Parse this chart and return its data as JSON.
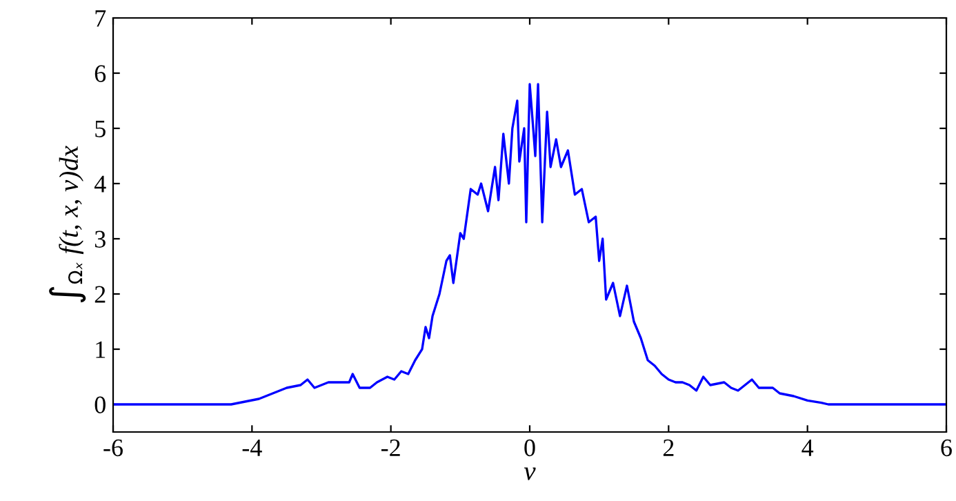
{
  "chart_data": {
    "type": "line",
    "xlabel": "v",
    "ylabel": "∫$_{Ωₓ}$ f(t, x, v)dx",
    "xlim": [
      -6,
      6
    ],
    "xticks": [
      -6,
      -4,
      -2,
      0,
      2,
      4,
      6
    ],
    "ylim": [
      -0.5,
      7
    ],
    "yticks": [
      0,
      1,
      2,
      3,
      4,
      5,
      6,
      7
    ],
    "grid": false,
    "legend": false,
    "marker": "none",
    "line_style": "solid",
    "series": [
      {
        "color": "#0000ff",
        "x": [
          -6,
          -4.3,
          -4.1,
          -3.9,
          -3.7,
          -3.5,
          -3.3,
          -3.2,
          -3.1,
          -2.9,
          -2.8,
          -2.6,
          -2.55,
          -2.45,
          -2.3,
          -2.2,
          -2.05,
          -1.95,
          -1.85,
          -1.75,
          -1.65,
          -1.55,
          -1.5,
          -1.45,
          -1.4,
          -1.3,
          -1.2,
          -1.15,
          -1.1,
          -1.0,
          -0.95,
          -0.85,
          -0.75,
          -0.7,
          -0.6,
          -0.5,
          -0.45,
          -0.38,
          -0.3,
          -0.25,
          -0.18,
          -0.15,
          -0.08,
          -0.05,
          0.0,
          0.05,
          0.08,
          0.12,
          0.18,
          0.25,
          0.3,
          0.38,
          0.45,
          0.55,
          0.65,
          0.75,
          0.85,
          0.95,
          1.0,
          1.05,
          1.1,
          1.2,
          1.3,
          1.4,
          1.5,
          1.6,
          1.7,
          1.8,
          1.9,
          2.0,
          2.1,
          2.2,
          2.3,
          2.4,
          2.5,
          2.6,
          2.8,
          2.9,
          3.0,
          3.2,
          3.3,
          3.5,
          3.6,
          3.8,
          4.0,
          4.2,
          4.3,
          6
        ],
        "values": [
          0,
          0,
          0.05,
          0.1,
          0.2,
          0.3,
          0.35,
          0.45,
          0.3,
          0.4,
          0.4,
          0.4,
          0.55,
          0.3,
          0.3,
          0.4,
          0.5,
          0.45,
          0.6,
          0.55,
          0.8,
          1.0,
          1.4,
          1.2,
          1.6,
          2.0,
          2.6,
          2.7,
          2.2,
          3.1,
          3.0,
          3.9,
          3.8,
          4.0,
          3.5,
          4.3,
          3.7,
          4.9,
          4.0,
          5.0,
          5.5,
          4.4,
          5.0,
          3.3,
          5.8,
          5.0,
          4.5,
          5.8,
          3.3,
          5.3,
          4.3,
          4.8,
          4.3,
          4.6,
          3.8,
          3.9,
          3.3,
          3.4,
          2.6,
          3.0,
          1.9,
          2.2,
          1.6,
          2.15,
          1.5,
          1.2,
          0.8,
          0.7,
          0.55,
          0.45,
          0.4,
          0.4,
          0.35,
          0.25,
          0.5,
          0.35,
          0.4,
          0.3,
          0.25,
          0.45,
          0.3,
          0.3,
          0.2,
          0.15,
          0.07,
          0.03,
          0,
          0
        ]
      }
    ]
  }
}
